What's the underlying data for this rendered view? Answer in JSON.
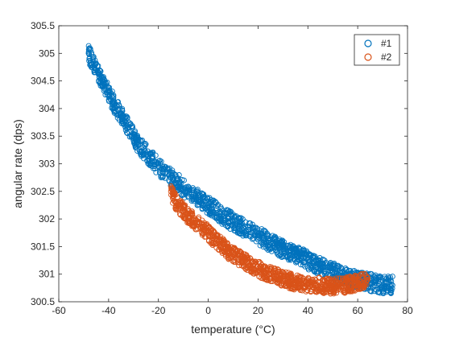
{
  "chart_data": {
    "type": "scatter",
    "title": "",
    "xlabel": "temperature (°C)",
    "ylabel": "angular rate (dps)",
    "xlim": [
      -60,
      80
    ],
    "ylim": [
      300.5,
      305.5
    ],
    "xticks": [
      -60,
      -40,
      -20,
      0,
      20,
      40,
      60,
      80
    ],
    "yticks": [
      300.5,
      301,
      301.5,
      302,
      302.5,
      303,
      303.5,
      304,
      304.5,
      305,
      305.5
    ],
    "xtick_labels": [
      "-60",
      "-40",
      "-20",
      "0",
      "20",
      "40",
      "60",
      "80"
    ],
    "ytick_labels": [
      "300.5",
      "301",
      "301.5",
      "302",
      "302.5",
      "303",
      "303.5",
      "304",
      "304.5",
      "305",
      "305.5"
    ],
    "grid": false,
    "legend_position": "top-right",
    "marker": "open-circle",
    "series": [
      {
        "name": "#1",
        "color": "#0072BD",
        "x": [
          -48,
          -45,
          -42,
          -40,
          -38,
          -35,
          -32,
          -30,
          -28,
          -25,
          -22,
          -20,
          -18,
          -15,
          -12,
          -10,
          -8,
          -5,
          -2,
          0,
          3,
          6,
          10,
          14,
          18,
          22,
          26,
          30,
          34,
          38,
          42,
          46,
          50,
          55,
          60,
          65,
          70,
          74
        ],
        "y": [
          305.0,
          304.7,
          304.45,
          304.3,
          304.1,
          303.9,
          303.65,
          303.5,
          303.35,
          303.2,
          303.05,
          302.95,
          302.85,
          302.75,
          302.65,
          302.55,
          302.5,
          302.4,
          302.32,
          302.25,
          302.15,
          302.05,
          301.95,
          301.85,
          301.75,
          301.65,
          301.55,
          301.45,
          301.38,
          301.3,
          301.2,
          301.12,
          301.05,
          300.95,
          300.9,
          300.85,
          300.8,
          300.8
        ],
        "spread": 0.16
      },
      {
        "name": "#2",
        "color": "#D95319",
        "x": [
          -15,
          -14,
          -13,
          -12,
          -10,
          -8,
          -6,
          -4,
          -2,
          0,
          2,
          4,
          6,
          8,
          10,
          14,
          18,
          22,
          26,
          30,
          35,
          40,
          45,
          50,
          55,
          60,
          64
        ],
        "y": [
          302.5,
          302.4,
          302.3,
          302.25,
          302.15,
          302.05,
          301.98,
          301.9,
          301.82,
          301.75,
          301.65,
          301.58,
          301.5,
          301.42,
          301.35,
          301.25,
          301.15,
          301.05,
          300.98,
          300.92,
          300.85,
          300.82,
          300.8,
          300.78,
          300.8,
          300.85,
          300.9
        ],
        "spread": 0.14
      }
    ]
  }
}
